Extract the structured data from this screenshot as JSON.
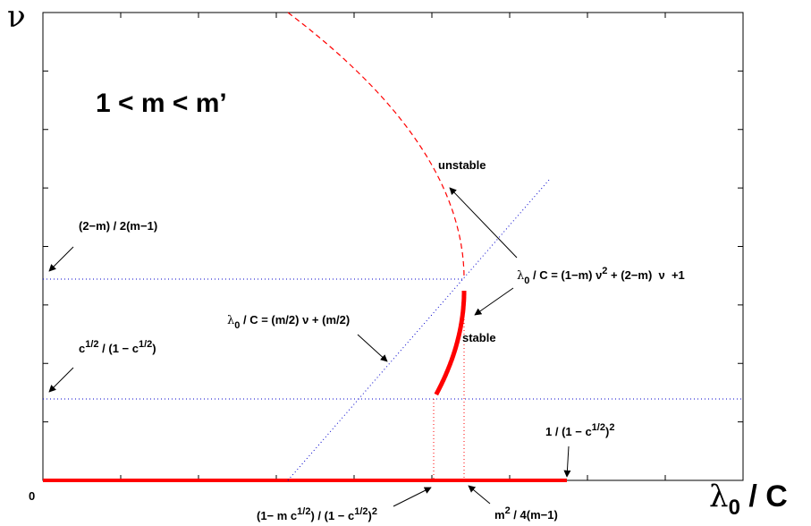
{
  "chart_data": {
    "type": "line",
    "title": "1 < m < m’",
    "xlabel": {
      "main": "λ",
      "sub": "0",
      "rest": " / C"
    },
    "ylabel": "ν",
    "origin_label": "0",
    "grid": false,
    "curves": {
      "unstable_branch": {
        "label": "unstable",
        "color": "#ff0000",
        "style": "dashed"
      },
      "stable_branch": {
        "label": "stable",
        "color": "#ff0000",
        "style": "solid-thick"
      },
      "nu_zero_segment": {
        "color": "#ff0000",
        "style": "solid-thick"
      },
      "linear_line": {
        "color": "#0000cc",
        "style": "dotted"
      },
      "level_lines": {
        "color": "#0000cc",
        "style": "dotted"
      },
      "drop_lines": {
        "color": "#ff0000",
        "style": "dotted"
      }
    },
    "annotations": {
      "level_upper": {
        "base": "(2−m) / 2(m−1)"
      },
      "level_lower": {
        "base": "c",
        "sup1": "1/2",
        "mid": " / (1 − c",
        "sup2": "1/2",
        "end": ")"
      },
      "linear_eq": {
        "lam": "λ",
        "sub": "0",
        "rest": " / C = (m/2) ν + (m/2)"
      },
      "quadratic_eq": {
        "lam": "λ",
        "sub": "0",
        "a": " / C = (1−m) ν",
        "sup": "2",
        "b": " + (2−m)  ν  +1"
      },
      "x_right": {
        "a": "1 / (1 − c",
        "sup1": "1/2",
        "b": ")",
        "sup2": "2"
      },
      "x_left": {
        "a": "(1− m c",
        "sup1": "1/2",
        "b": ") / (1 − c",
        "sup2": "1/2",
        "c": ")",
        "sup3": "2"
      },
      "x_vertex": {
        "a": "m",
        "sup": "2",
        "b": " / 4(m−1)"
      }
    }
  }
}
